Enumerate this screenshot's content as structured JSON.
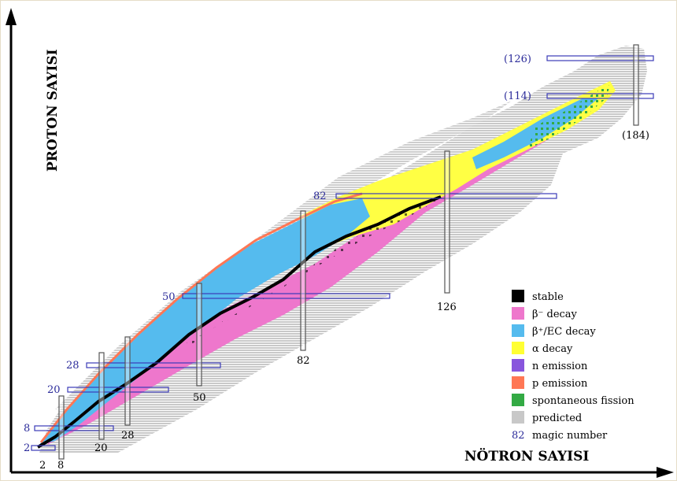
{
  "axes": {
    "y_title": "PROTON SAYISI",
    "x_title": "NÖTRON SAYISI"
  },
  "proton_magic_labels": [
    "2",
    "8",
    "20",
    "28",
    "50",
    "82",
    "(114)",
    "(126)"
  ],
  "neutron_magic_labels": [
    "2",
    "8",
    "20",
    "28",
    "50",
    "82",
    "126",
    "(184)"
  ],
  "legend": [
    {
      "key": "stable",
      "label": "stable",
      "color": "#000000"
    },
    {
      "key": "beta_minus",
      "label": "β⁻ decay",
      "color": "#ee77cc"
    },
    {
      "key": "beta_plus",
      "label": "β⁺/EC decay",
      "color": "#55bbee"
    },
    {
      "key": "alpha",
      "label": "α decay",
      "color": "#ffff33"
    },
    {
      "key": "n_emission",
      "label": "n emission",
      "color": "#8855dd"
    },
    {
      "key": "p_emission",
      "label": "p emission",
      "color": "#ff7755"
    },
    {
      "key": "fission",
      "label": "spontaneous fission",
      "color": "#33aa44"
    },
    {
      "key": "predicted",
      "label": "predicted",
      "color": "#c8c8c8"
    }
  ],
  "legend_magic": {
    "number": "82",
    "label": "magic number"
  },
  "colors": {
    "stable": "#000000",
    "beta_minus": "#ee77cc",
    "beta_plus": "#55bbee",
    "alpha": "#ffff33",
    "fission": "#33aa44",
    "predicted": "#c8c8c8",
    "magic_box_stroke": "#3b3bb8",
    "magic_text": "#2b2b9a"
  }
}
